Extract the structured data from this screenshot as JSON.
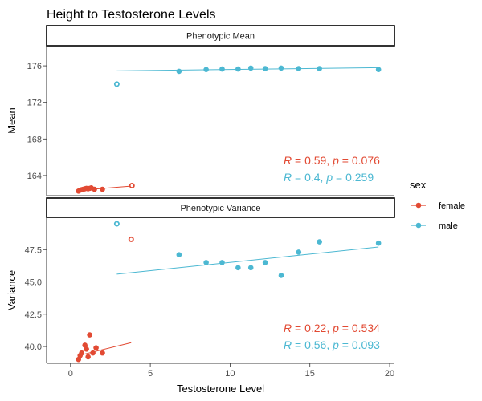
{
  "chart_data": {
    "type": "scatter",
    "title": "Height to Testosterone Levels",
    "xlabel": "Testosterone Level",
    "xlim": [
      -1.5,
      20.3
    ],
    "xticks": [
      0,
      5,
      10,
      15,
      20
    ],
    "legend": {
      "title": "sex",
      "placement": "right",
      "items": [
        {
          "label": "female",
          "color": "#E24A33"
        },
        {
          "label": "male",
          "color": "#4CB8D2"
        }
      ]
    },
    "facets": [
      {
        "strip": "Phenotypic Mean",
        "ylabel": "Mean",
        "ylim": [
          161.8,
          178.2
        ],
        "yticks": [
          164,
          168,
          172,
          176
        ],
        "series": [
          {
            "name": "female",
            "color": "#E24A33",
            "points": [
              [
                0.5,
                162.3
              ],
              [
                0.6,
                162.4
              ],
              [
                0.7,
                162.45
              ],
              [
                0.8,
                162.5
              ],
              [
                0.9,
                162.55
              ],
              [
                1.0,
                162.6
              ],
              [
                1.1,
                162.55
              ],
              [
                1.2,
                162.6
              ],
              [
                1.3,
                162.65
              ],
              [
                1.5,
                162.5
              ],
              [
                2.0,
                162.5
              ]
            ],
            "outlier": [
              3.85,
              162.9
            ],
            "fit": [
              [
                0.5,
                162.38
              ],
              [
                3.85,
                162.85
              ]
            ],
            "stat": {
              "R": "0.59",
              "p": "0.076"
            }
          },
          {
            "name": "male",
            "color": "#4CB8D2",
            "points": [
              [
                6.8,
                175.4
              ],
              [
                8.5,
                175.6
              ],
              [
                9.5,
                175.65
              ],
              [
                10.5,
                175.65
              ],
              [
                11.3,
                175.75
              ],
              [
                12.2,
                175.7
              ],
              [
                13.2,
                175.75
              ],
              [
                14.3,
                175.7
              ],
              [
                15.6,
                175.7
              ],
              [
                19.3,
                175.6
              ]
            ],
            "outlier": [
              2.9,
              174.0
            ],
            "fit": [
              [
                2.9,
                175.45
              ],
              [
                19.3,
                175.8
              ]
            ],
            "stat": {
              "R": "0.4",
              "p": "0.259"
            }
          }
        ]
      },
      {
        "strip": "Phenotypic Variance",
        "ylabel": "Variance",
        "ylim": [
          38.7,
          50.0
        ],
        "yticks": [
          40.0,
          42.5,
          45.0,
          47.5
        ],
        "series": [
          {
            "name": "female",
            "color": "#E24A33",
            "points": [
              [
                0.5,
                39.0
              ],
              [
                0.6,
                39.3
              ],
              [
                0.7,
                39.5
              ],
              [
                0.9,
                40.1
              ],
              [
                1.0,
                39.8
              ],
              [
                1.1,
                39.2
              ],
              [
                1.2,
                40.9
              ],
              [
                1.4,
                39.5
              ],
              [
                1.6,
                39.9
              ],
              [
                2.0,
                39.5
              ]
            ],
            "outlier": [
              3.8,
              48.3
            ],
            "fit": [
              [
                0.5,
                39.3
              ],
              [
                3.8,
                40.3
              ]
            ],
            "stat": {
              "R": "0.22",
              "p": "0.534"
            }
          },
          {
            "name": "male",
            "color": "#4CB8D2",
            "points": [
              [
                6.8,
                47.1
              ],
              [
                8.5,
                46.5
              ],
              [
                9.5,
                46.5
              ],
              [
                10.5,
                46.1
              ],
              [
                11.3,
                46.1
              ],
              [
                12.2,
                46.5
              ],
              [
                13.2,
                45.5
              ],
              [
                14.3,
                47.3
              ],
              [
                15.6,
                48.1
              ],
              [
                19.3,
                48.0
              ]
            ],
            "outlier": [
              2.9,
              49.5
            ],
            "fit": [
              [
                2.9,
                45.6
              ],
              [
                19.3,
                47.7
              ]
            ],
            "stat": {
              "R": "0.56",
              "p": "0.093"
            }
          }
        ]
      }
    ]
  }
}
